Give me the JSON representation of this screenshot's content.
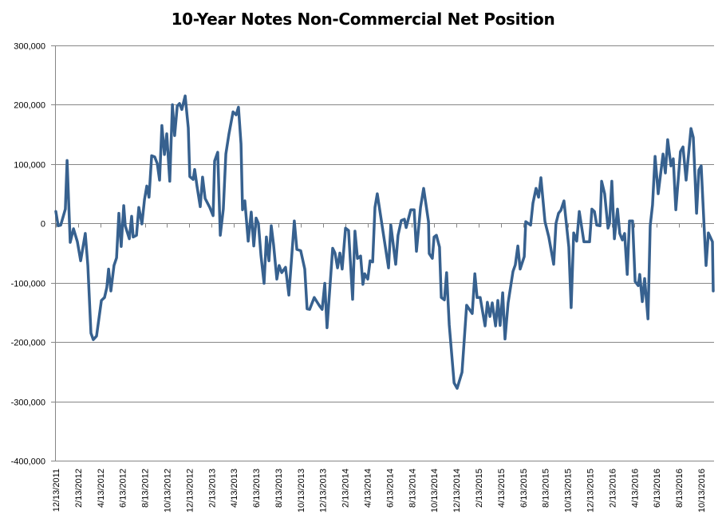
{
  "chart_data": {
    "type": "line",
    "title": "10-Year Notes Non-Commercial Net Position",
    "xlabel": "",
    "ylabel": "",
    "x_unit": "weeks since 12/13/2011",
    "y_unit": "contracts (thousands)",
    "ylim": [
      -400000,
      300000
    ],
    "y_ticks": [
      300000,
      200000,
      100000,
      0,
      -100000,
      -200000,
      -300000,
      -400000
    ],
    "y_tick_labels": [
      "300,000",
      "200,000",
      "100,000",
      "0",
      "-100,000",
      "-200,000",
      "-300,000",
      "-400,000"
    ],
    "x_tick_labels": [
      "12/13/2011",
      "2/13/2012",
      "4/13/2012",
      "6/13/2012",
      "8/13/2012",
      "10/13/2012",
      "12/13/2012",
      "2/13/2013",
      "4/13/2013",
      "6/13/2013",
      "8/13/2013",
      "10/13/2013",
      "12/13/2013",
      "2/13/2014",
      "4/13/2014",
      "6/13/2014",
      "8/13/2014",
      "10/13/2014",
      "12/13/2014",
      "2/13/2015",
      "4/13/2015",
      "6/13/2015",
      "8/13/2015",
      "10/13/2015",
      "12/13/2015",
      "2/13/2016",
      "4/13/2016",
      "6/13/2016",
      "8/13/2016",
      "10/13/2016"
    ],
    "x_tick_step_months": 2,
    "xlim_weeks": [
      0,
      257.5
    ],
    "grid": "horizontal",
    "legend": "none",
    "line_color": "#37618F",
    "series": [
      {
        "name": "10-Year Notes Non-Commercial Net Position",
        "points_week_valueK": [
          [
            0.0,
            20
          ],
          [
            0.9,
            -4
          ],
          [
            1.9,
            -3
          ],
          [
            3.7,
            24
          ],
          [
            4.4,
            106
          ],
          [
            5.6,
            -32
          ],
          [
            6.9,
            -9
          ],
          [
            8.4,
            -31
          ],
          [
            9.7,
            -63
          ],
          [
            11.5,
            -17
          ],
          [
            12.5,
            -71
          ],
          [
            13.7,
            -185
          ],
          [
            14.6,
            -196
          ],
          [
            15.9,
            -190
          ],
          [
            17.8,
            -130
          ],
          [
            19.0,
            -125
          ],
          [
            19.9,
            -108
          ],
          [
            20.6,
            -77
          ],
          [
            21.5,
            -114
          ],
          [
            22.7,
            -71
          ],
          [
            23.7,
            -58
          ],
          [
            24.6,
            17
          ],
          [
            25.5,
            -39
          ],
          [
            26.5,
            30
          ],
          [
            27.1,
            -4
          ],
          [
            28.7,
            -26
          ],
          [
            29.6,
            12
          ],
          [
            30.2,
            -23
          ],
          [
            31.5,
            -20
          ],
          [
            32.4,
            27
          ],
          [
            33.6,
            -1
          ],
          [
            34.6,
            40
          ],
          [
            35.5,
            63
          ],
          [
            36.4,
            44
          ],
          [
            37.4,
            114
          ],
          [
            38.6,
            112
          ],
          [
            39.6,
            101
          ],
          [
            40.5,
            73
          ],
          [
            41.4,
            165
          ],
          [
            42.4,
            116
          ],
          [
            43.3,
            151
          ],
          [
            44.5,
            71
          ],
          [
            45.5,
            200
          ],
          [
            46.4,
            148
          ],
          [
            47.4,
            198
          ],
          [
            48.3,
            202
          ],
          [
            49.2,
            192
          ],
          [
            50.5,
            215
          ],
          [
            51.7,
            161
          ],
          [
            52.3,
            79
          ],
          [
            53.6,
            74
          ],
          [
            54.2,
            91
          ],
          [
            55.1,
            63
          ],
          [
            56.4,
            28
          ],
          [
            57.3,
            78
          ],
          [
            58.3,
            42
          ],
          [
            60.1,
            27
          ],
          [
            61.4,
            13
          ],
          [
            62.0,
            105
          ],
          [
            63.2,
            120
          ],
          [
            64.2,
            -20
          ],
          [
            65.4,
            24
          ],
          [
            66.4,
            117
          ],
          [
            67.6,
            151
          ],
          [
            69.2,
            188
          ],
          [
            70.4,
            183
          ],
          [
            71.3,
            196
          ],
          [
            72.3,
            134
          ],
          [
            72.9,
            23
          ],
          [
            73.8,
            38
          ],
          [
            75.1,
            -30
          ],
          [
            76.3,
            19
          ],
          [
            77.3,
            -38
          ],
          [
            78.2,
            9
          ],
          [
            79.1,
            0
          ],
          [
            80.1,
            -54
          ],
          [
            81.3,
            -101
          ],
          [
            82.2,
            -23
          ],
          [
            83.2,
            -63
          ],
          [
            84.1,
            -4
          ],
          [
            85.0,
            -36
          ],
          [
            86.3,
            -94
          ],
          [
            87.2,
            -71
          ],
          [
            88.2,
            -83
          ],
          [
            89.7,
            -74
          ],
          [
            91.0,
            -121
          ],
          [
            93.1,
            4
          ],
          [
            94.1,
            -44
          ],
          [
            95.6,
            -46
          ],
          [
            97.2,
            -77
          ],
          [
            98.1,
            -144
          ],
          [
            99.1,
            -145
          ],
          [
            100.9,
            -125
          ],
          [
            102.2,
            -134
          ],
          [
            103.1,
            -140
          ],
          [
            104.0,
            -145
          ],
          [
            105.0,
            -101
          ],
          [
            105.9,
            -176
          ],
          [
            108.1,
            -42
          ],
          [
            109.0,
            -50
          ],
          [
            110.0,
            -75
          ],
          [
            110.9,
            -50
          ],
          [
            111.8,
            -77
          ],
          [
            113.1,
            -8
          ],
          [
            114.3,
            -12
          ],
          [
            115.9,
            -128
          ],
          [
            116.8,
            -13
          ],
          [
            117.8,
            -59
          ],
          [
            119.0,
            -55
          ],
          [
            119.9,
            -103
          ],
          [
            120.6,
            -85
          ],
          [
            121.8,
            -94
          ],
          [
            122.7,
            -63
          ],
          [
            123.7,
            -65
          ],
          [
            124.6,
            27
          ],
          [
            125.5,
            50
          ],
          [
            129.9,
            -75
          ],
          [
            130.8,
            -3
          ],
          [
            132.7,
            -69
          ],
          [
            133.6,
            -20
          ],
          [
            134.9,
            5
          ],
          [
            136.1,
            7
          ],
          [
            136.8,
            -7
          ],
          [
            138.6,
            23
          ],
          [
            139.9,
            23
          ],
          [
            140.8,
            -47
          ],
          [
            142.4,
            27
          ],
          [
            143.6,
            59
          ],
          [
            145.5,
            3
          ],
          [
            145.8,
            -51
          ],
          [
            147.0,
            -59
          ],
          [
            147.7,
            -23
          ],
          [
            148.6,
            -20
          ],
          [
            149.8,
            -40
          ],
          [
            150.5,
            -125
          ],
          [
            151.7,
            -129
          ],
          [
            152.6,
            -83
          ],
          [
            153.6,
            -171
          ],
          [
            155.5,
            -269
          ],
          [
            156.7,
            -278
          ],
          [
            158.6,
            -251
          ],
          [
            160.4,
            -138
          ],
          [
            162.6,
            -152
          ],
          [
            163.6,
            -85
          ],
          [
            164.5,
            -125
          ],
          [
            165.7,
            -125
          ],
          [
            167.6,
            -173
          ],
          [
            168.5,
            -133
          ],
          [
            169.5,
            -157
          ],
          [
            170.4,
            -134
          ],
          [
            171.7,
            -173
          ],
          [
            172.6,
            -130
          ],
          [
            173.5,
            -172
          ],
          [
            174.5,
            -117
          ],
          [
            175.4,
            -195
          ],
          [
            176.6,
            -134
          ],
          [
            178.5,
            -81
          ],
          [
            179.4,
            -70
          ],
          [
            180.4,
            -38
          ],
          [
            181.3,
            -77
          ],
          [
            182.9,
            -56
          ],
          [
            183.5,
            3
          ],
          [
            185.4,
            -3
          ],
          [
            186.3,
            34
          ],
          [
            187.5,
            59
          ],
          [
            188.5,
            44
          ],
          [
            189.4,
            77
          ],
          [
            191.0,
            3
          ],
          [
            192.5,
            -23
          ],
          [
            194.4,
            -69
          ],
          [
            195.3,
            0
          ],
          [
            196.3,
            17
          ],
          [
            197.2,
            22
          ],
          [
            198.4,
            38
          ],
          [
            200.3,
            -40
          ],
          [
            201.2,
            -142
          ],
          [
            202.2,
            -16
          ],
          [
            203.4,
            -30
          ],
          [
            204.4,
            20
          ],
          [
            206.2,
            -31
          ],
          [
            208.4,
            -31
          ],
          [
            209.3,
            24
          ],
          [
            210.3,
            20
          ],
          [
            211.2,
            -3
          ],
          [
            212.5,
            -4
          ],
          [
            213.1,
            71
          ],
          [
            214.3,
            50
          ],
          [
            215.6,
            -8
          ],
          [
            216.2,
            0
          ],
          [
            217.1,
            71
          ],
          [
            218.1,
            -26
          ],
          [
            219.3,
            24
          ],
          [
            220.2,
            -17
          ],
          [
            221.2,
            -28
          ],
          [
            222.1,
            -17
          ],
          [
            223.1,
            -86
          ],
          [
            224.0,
            4
          ],
          [
            225.2,
            4
          ],
          [
            226.2,
            -98
          ],
          [
            227.4,
            -105
          ],
          [
            228.0,
            -86
          ],
          [
            229.0,
            -132
          ],
          [
            229.9,
            -93
          ],
          [
            231.2,
            -161
          ],
          [
            232.1,
            -4
          ],
          [
            233.0,
            31
          ],
          [
            234.0,
            113
          ],
          [
            235.2,
            50
          ],
          [
            237.1,
            117
          ],
          [
            238.0,
            85
          ],
          [
            238.9,
            141
          ],
          [
            240.2,
            97
          ],
          [
            241.1,
            109
          ],
          [
            242.1,
            23
          ],
          [
            243.9,
            121
          ],
          [
            244.9,
            129
          ],
          [
            246.1,
            73
          ],
          [
            248.0,
            160
          ],
          [
            248.9,
            145
          ],
          [
            250.2,
            17
          ],
          [
            251.1,
            90
          ],
          [
            252.0,
            97
          ],
          [
            253.3,
            -20
          ],
          [
            253.9,
            -71
          ],
          [
            254.8,
            -16
          ],
          [
            256.4,
            -31
          ],
          [
            256.7,
            -114
          ]
        ]
      }
    ]
  }
}
